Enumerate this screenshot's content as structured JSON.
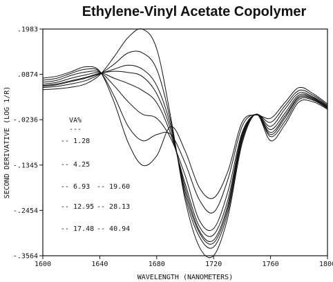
{
  "chart_data": {
    "type": "line",
    "title": "Ethylene-Vinyl Acetate Copolymer",
    "xlabel": "WAVELENGTH (NANOMETERS)",
    "ylabel": "SECOND DERIVATIVE (LOG 1/R)",
    "xlim": [
      1600,
      1800
    ],
    "ylim": [
      -0.3564,
      0.1983
    ],
    "x_ticks": [
      "1600",
      "1640",
      "1680",
      "1720",
      "1760",
      "1800"
    ],
    "y_ticks": [
      ".1983",
      ".0874",
      "-.0236",
      "-.1345",
      "-.2454",
      "-.3564"
    ],
    "x_tick_values": [
      1600,
      1640,
      1680,
      1720,
      1760,
      1800
    ],
    "y_tick_values": [
      0.1983,
      0.0874,
      -0.0236,
      -0.1345,
      -0.2454,
      -0.3564
    ],
    "legend": {
      "title": "VA%",
      "entries": [
        "1.28",
        "4.25",
        "6.93",
        "19.60",
        "12.95",
        "28.13",
        "17.48",
        "40.94"
      ]
    },
    "x": [
      1600,
      1610,
      1620,
      1630,
      1640,
      1650,
      1660,
      1670,
      1680,
      1690,
      1700,
      1710,
      1720,
      1730,
      1740,
      1750,
      1760,
      1770,
      1780,
      1790,
      1800
    ],
    "series": [
      {
        "name": "1.28",
        "values": [
          0.078,
          0.083,
          0.094,
          0.106,
          0.095,
          0.02,
          -0.08,
          -0.135,
          -0.112,
          -0.04,
          -0.1,
          -0.19,
          -0.215,
          -0.15,
          -0.03,
          -0.012,
          -0.02,
          0.018,
          0.055,
          0.04,
          0.015
        ]
      },
      {
        "name": "4.25",
        "values": [
          0.073,
          0.078,
          0.09,
          0.1,
          0.094,
          0.035,
          -0.04,
          -0.075,
          -0.06,
          -0.06,
          -0.13,
          -0.22,
          -0.25,
          -0.17,
          -0.04,
          -0.01,
          -0.03,
          0.01,
          0.048,
          0.036,
          0.012
        ]
      },
      {
        "name": "6.93",
        "values": [
          0.068,
          0.073,
          0.085,
          0.093,
          0.093,
          0.06,
          0.02,
          -0.01,
          -0.02,
          -0.07,
          -0.16,
          -0.27,
          -0.29,
          -0.2,
          -0.055,
          -0.01,
          -0.04,
          0.002,
          0.042,
          0.032,
          0.01
        ]
      },
      {
        "name": "12.95",
        "values": [
          0.063,
          0.068,
          0.078,
          0.086,
          0.092,
          0.078,
          0.065,
          0.048,
          0.018,
          -0.06,
          -0.18,
          -0.285,
          -0.305,
          -0.22,
          -0.06,
          -0.01,
          -0.048,
          -0.008,
          0.037,
          0.03,
          0.008
        ]
      },
      {
        "name": "17.48",
        "values": [
          0.06,
          0.064,
          0.072,
          0.08,
          0.09,
          0.095,
          0.092,
          0.082,
          0.04,
          -0.05,
          -0.19,
          -0.295,
          -0.318,
          -0.232,
          -0.065,
          -0.01,
          -0.055,
          -0.015,
          0.033,
          0.028,
          0.006
        ]
      },
      {
        "name": "19.60",
        "values": [
          0.058,
          0.062,
          0.07,
          0.078,
          0.089,
          0.1,
          0.11,
          0.1,
          0.06,
          -0.04,
          -0.2,
          -0.3,
          -0.325,
          -0.24,
          -0.07,
          -0.01,
          -0.06,
          -0.02,
          0.03,
          0.026,
          0.005
        ]
      },
      {
        "name": "28.13",
        "values": [
          0.055,
          0.058,
          0.064,
          0.072,
          0.088,
          0.112,
          0.14,
          0.14,
          0.1,
          -0.03,
          -0.21,
          -0.31,
          -0.335,
          -0.25,
          -0.075,
          -0.01,
          -0.065,
          -0.028,
          0.026,
          0.024,
          0.004
        ]
      },
      {
        "name": "40.94",
        "values": [
          0.05,
          0.052,
          0.056,
          0.064,
          0.086,
          0.13,
          0.178,
          0.198,
          0.15,
          -0.02,
          -0.22,
          -0.335,
          -0.356,
          -0.262,
          -0.082,
          -0.01,
          -0.075,
          -0.036,
          0.02,
          0.02,
          0.002
        ]
      }
    ]
  }
}
